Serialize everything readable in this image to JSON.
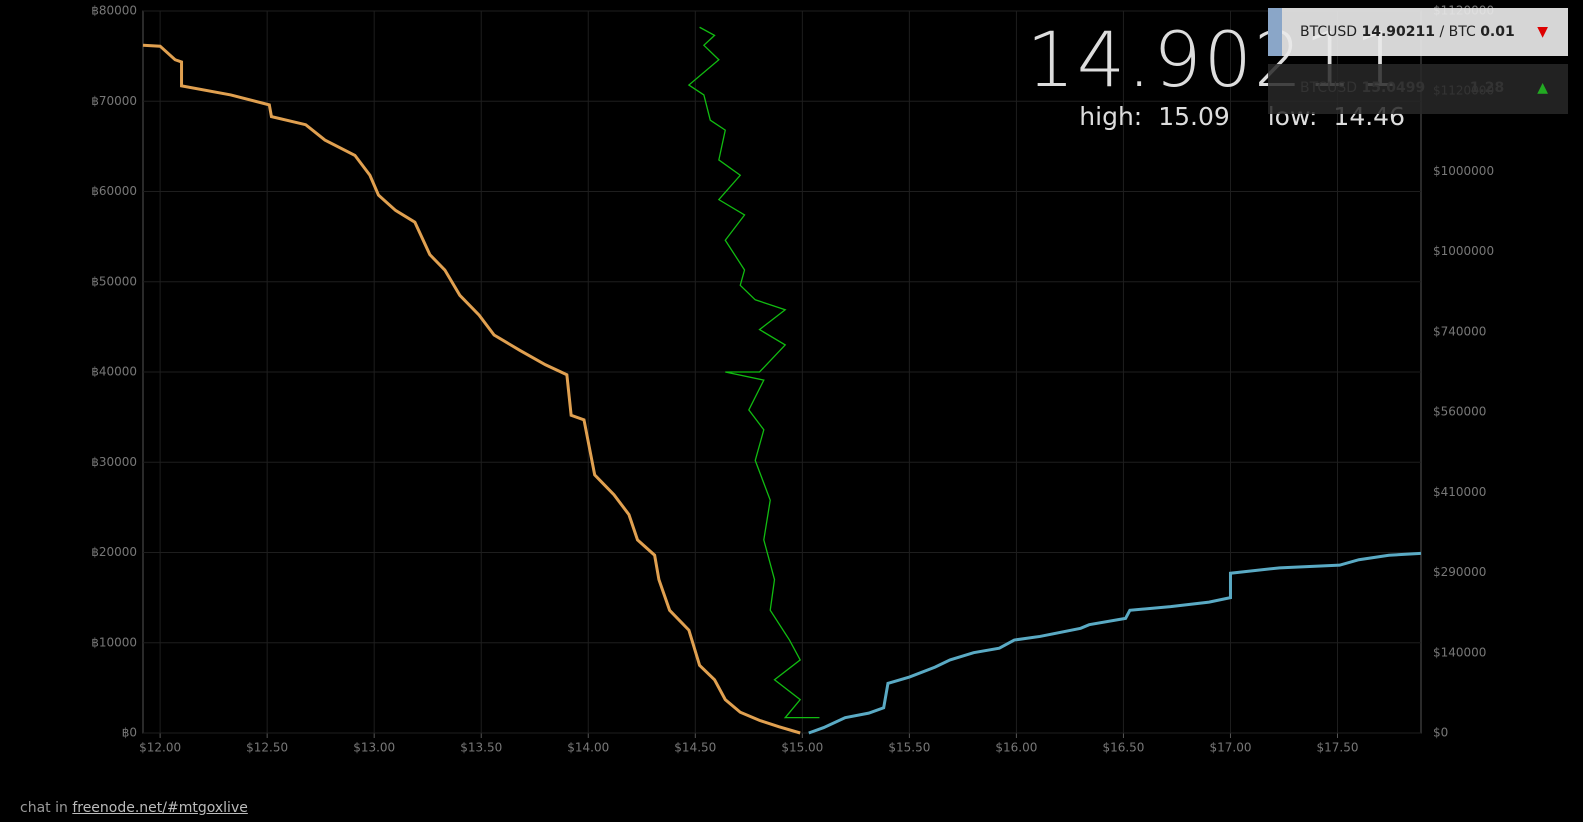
{
  "chart_data": {
    "type": "line",
    "xlim": [
      11.92,
      17.89
    ],
    "xticks": [
      {
        "value": 12,
        "label": "$12.00"
      },
      {
        "value": 12.5,
        "label": "$12.50"
      },
      {
        "value": 13,
        "label": "$13.00"
      },
      {
        "value": 13.5,
        "label": "$13.50"
      },
      {
        "value": 14,
        "label": "$14.00"
      },
      {
        "value": 14.5,
        "label": "$14.50"
      },
      {
        "value": 15,
        "label": "$15.00"
      },
      {
        "value": 15.5,
        "label": "$15.50"
      },
      {
        "value": 16,
        "label": "$16.00"
      },
      {
        "value": 16.5,
        "label": "$16.50"
      },
      {
        "value": 17,
        "label": "$17.00"
      },
      {
        "value": 17.5,
        "label": "$17.50"
      }
    ],
    "ylim": [
      0,
      80000
    ],
    "yticks": [
      {
        "value": 0,
        "label": "฿0"
      },
      {
        "value": 10000,
        "label": "฿10000"
      },
      {
        "value": 20000,
        "label": "฿20000"
      },
      {
        "value": 30000,
        "label": "฿30000"
      },
      {
        "value": 40000,
        "label": "฿40000"
      },
      {
        "value": 50000,
        "label": "฿50000"
      },
      {
        "value": 60000,
        "label": "฿60000"
      },
      {
        "value": 70000,
        "label": "฿70000"
      },
      {
        "value": 80000,
        "label": "฿80000"
      }
    ],
    "y2_tick_labels": [
      "$0",
      "$140000",
      "$290000",
      "$410000",
      "$560000",
      "$740000",
      "$1000000",
      "$1000000",
      "$1120000",
      "$1120000"
    ],
    "grid": true,
    "series": [
      {
        "color": "#e0a050",
        "x": [
          11.92,
          12.0,
          12.07,
          12.1,
          12.1,
          12.33,
          12.51,
          12.52,
          12.68,
          12.77,
          12.91,
          12.98,
          13.02,
          13.1,
          13.19,
          13.26,
          13.33,
          13.4,
          13.49,
          13.56,
          13.68,
          13.8,
          13.9,
          13.92,
          13.98,
          14.03,
          14.12,
          14.19,
          14.23,
          14.31,
          14.33,
          14.38,
          14.47,
          14.52,
          14.59,
          14.64,
          14.71,
          14.8,
          14.89,
          14.99
        ],
        "values": [
          76200,
          76100,
          74600,
          74350,
          71700,
          70700,
          69600,
          68300,
          67400,
          65700,
          64000,
          61800,
          59600,
          57900,
          56600,
          53000,
          51300,
          48500,
          46300,
          44100,
          42400,
          40800,
          39700,
          35200,
          34700,
          28600,
          26400,
          24200,
          21400,
          19700,
          17000,
          13600,
          11400,
          7500,
          5900,
          3700,
          2300,
          1400,
          700,
          0
        ]
      },
      {
        "color": "#5aaac4",
        "x": [
          15.03,
          15.1,
          15.2,
          15.31,
          15.38,
          15.4,
          15.5,
          15.62,
          15.69,
          15.8,
          15.92,
          15.99,
          16.11,
          16.3,
          16.34,
          16.51,
          16.53,
          16.72,
          16.9,
          17.0,
          17.0,
          17.23,
          17.51,
          17.6,
          17.74,
          17.89
        ],
        "values": [
          0,
          600,
          1700,
          2200,
          2800,
          5500,
          6200,
          7300,
          8100,
          8900,
          9400,
          10300,
          10700,
          11600,
          12000,
          12700,
          13600,
          14000,
          14500,
          15000,
          17700,
          18300,
          18600,
          19200,
          19700,
          19900
        ]
      },
      {
        "color": "#11bb11",
        "x": [
          14.52,
          14.59,
          14.54,
          14.61,
          14.47,
          14.54,
          14.57,
          14.64,
          14.61,
          14.71,
          14.61,
          14.73,
          14.64,
          14.73,
          14.71,
          14.78,
          14.92,
          14.8,
          14.92,
          14.8,
          14.64,
          14.82,
          14.75,
          14.82,
          14.78,
          14.85,
          14.82,
          14.87,
          14.85,
          14.94,
          14.99,
          14.87,
          14.99,
          14.92,
          15.08
        ],
        "values": [
          78200,
          77300,
          76200,
          74600,
          71800,
          70700,
          67900,
          66800,
          63500,
          61800,
          59100,
          57400,
          54600,
          51300,
          49600,
          48000,
          46900,
          44700,
          43000,
          40000,
          40000,
          39100,
          35800,
          33600,
          30200,
          25800,
          21400,
          17000,
          13600,
          10300,
          8100,
          5900,
          3700,
          1700,
          1700
        ]
      }
    ]
  },
  "ticker": {
    "last": "14.90211",
    "high_label": "high:",
    "high": "15.09",
    "low_label": "low:",
    "low": "14.46"
  },
  "quote_box": {
    "rows": [
      {
        "symbol": "BTCUSD",
        "price": "14.90211",
        "sep": "/ BTC",
        "change": "0.01",
        "arrow": "▼"
      },
      {
        "symbol": "BTCUSD",
        "price": "15.0499",
        "change": "1.28",
        "arrow": "▲"
      }
    ]
  },
  "footer": {
    "prefix": "chat in",
    "link": "freenode.net/#mtgoxlive"
  }
}
